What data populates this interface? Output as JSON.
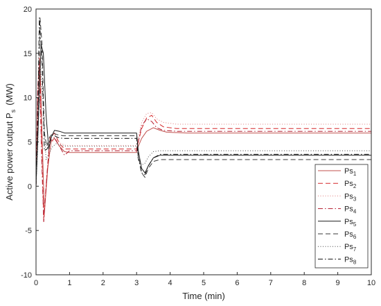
{
  "chart_data": {
    "type": "line",
    "xlabel": "Time (min)",
    "ylabel_main": "Active power output P",
    "ylabel_sub": "s",
    "ylabel_unit": "(MW)",
    "xlim": [
      0,
      10
    ],
    "ylim": [
      -10,
      20
    ],
    "xticks": [
      "0",
      "1",
      "2",
      "3",
      "4",
      "5",
      "6",
      "7",
      "8",
      "9",
      "10"
    ],
    "yticks": [
      "-10",
      "-5",
      "0",
      "5",
      "10",
      "15",
      "20"
    ],
    "grid": false,
    "legend_position": "right, lower-middle",
    "series": [
      {
        "name_main": "Ps",
        "name_sub": "1",
        "color": "#c0504d",
        "dash": "",
        "x": [
          0,
          0.05,
          0.12,
          0.18,
          0.25,
          0.35,
          0.45,
          0.55,
          0.7,
          0.85,
          1.0,
          1.5,
          2,
          2.5,
          3.0,
          3.05,
          3.15,
          3.3,
          3.5,
          3.7,
          3.9,
          4.5,
          6,
          8,
          10
        ],
        "y": [
          0,
          9,
          14,
          6,
          -3,
          2,
          5,
          5.4,
          4.5,
          3.9,
          3.8,
          3.8,
          3.8,
          3.8,
          3.8,
          4.5,
          5.4,
          6.2,
          6.6,
          6.3,
          6.1,
          6.0,
          6.0,
          6.0,
          6.0
        ]
      },
      {
        "name_main": "Ps",
        "name_sub": "2",
        "color": "#d62728",
        "dash": "7,4",
        "x": [
          0,
          0.05,
          0.1,
          0.17,
          0.23,
          0.32,
          0.42,
          0.55,
          0.7,
          0.85,
          1.0,
          1.5,
          2,
          2.5,
          3.0,
          3.05,
          3.15,
          3.3,
          3.45,
          3.6,
          3.8,
          4.2,
          6,
          8,
          10
        ],
        "y": [
          0,
          10,
          15,
          5,
          -4,
          1,
          5.5,
          6,
          4.8,
          4.2,
          4.2,
          4.2,
          4.2,
          4.2,
          4.2,
          5,
          6.5,
          7.7,
          8,
          7.2,
          6.7,
          6.5,
          6.5,
          6.5,
          6.5
        ]
      },
      {
        "name_main": "Ps",
        "name_sub": "3",
        "color": "#e07b7b",
        "dash": "1,2.5",
        "x": [
          0,
          0.05,
          0.1,
          0.17,
          0.25,
          0.35,
          0.45,
          0.6,
          0.75,
          0.9,
          1.0,
          1.5,
          2,
          2.5,
          3.0,
          3.05,
          3.15,
          3.3,
          3.45,
          3.6,
          3.8,
          4.2,
          6,
          8,
          10
        ],
        "y": [
          0,
          9,
          12,
          4,
          -2.5,
          2.5,
          5,
          5.3,
          4.8,
          4.6,
          4.6,
          4.6,
          4.6,
          4.6,
          4.6,
          5.5,
          7.2,
          8.2,
          8.3,
          7.6,
          7.2,
          7.0,
          7.0,
          7.0,
          7.0
        ]
      },
      {
        "name_main": "Ps",
        "name_sub": "4",
        "color": "#b2182b",
        "dash": "7,3,1.5,3",
        "x": [
          0,
          0.05,
          0.1,
          0.17,
          0.23,
          0.3,
          0.4,
          0.55,
          0.7,
          0.85,
          1.0,
          1.5,
          2,
          2.5,
          3.0,
          3.05,
          3.15,
          3.3,
          3.45,
          3.6,
          3.8,
          4.2,
          6,
          8,
          10
        ],
        "y": [
          0,
          11,
          14,
          3,
          -4,
          0,
          5,
          5.5,
          4.5,
          3.5,
          4.0,
          4.0,
          4.0,
          4.0,
          4.0,
          5,
          6.8,
          7.6,
          7.3,
          6.6,
          6.3,
          6.2,
          6.2,
          6.2,
          6.2
        ]
      },
      {
        "name_main": "Ps",
        "name_sub": "5",
        "color": "#1a1a1a",
        "dash": "",
        "x": [
          0,
          0.05,
          0.15,
          0.22,
          0.3,
          0.38,
          0.45,
          0.55,
          0.7,
          0.85,
          1.0,
          1.5,
          2,
          2.5,
          3.0,
          3.05,
          3.15,
          3.25,
          3.35,
          3.5,
          3.7,
          4.0,
          6,
          8,
          10
        ],
        "y": [
          0,
          5,
          16,
          15,
          8,
          4.2,
          5.5,
          6.3,
          6.2,
          6.0,
          6.0,
          6.0,
          6.0,
          6.0,
          6.0,
          4,
          2,
          1.5,
          2.3,
          3.2,
          3.5,
          3.5,
          3.5,
          3.5,
          3.5
        ]
      },
      {
        "name_main": "Ps",
        "name_sub": "6",
        "color": "#3a3a3a",
        "dash": "7,4",
        "x": [
          0,
          0.05,
          0.12,
          0.18,
          0.25,
          0.32,
          0.4,
          0.5,
          0.65,
          0.8,
          1.0,
          1.5,
          2,
          2.5,
          3.0,
          3.05,
          3.15,
          3.25,
          3.35,
          3.5,
          3.7,
          4.0,
          6,
          8,
          10
        ],
        "y": [
          0,
          6,
          19,
          16,
          6,
          4.5,
          5.5,
          6.0,
          5.8,
          5.7,
          5.7,
          5.7,
          5.7,
          5.7,
          5.7,
          3.5,
          1.5,
          1.0,
          2.0,
          2.8,
          3.0,
          3.0,
          3.0,
          3.0,
          3.0
        ]
      },
      {
        "name_main": "Ps",
        "name_sub": "7",
        "color": "#444444",
        "dash": "1,2.5",
        "x": [
          0,
          0.05,
          0.12,
          0.2,
          0.3,
          0.4,
          0.5,
          0.6,
          0.75,
          0.9,
          1.0,
          1.5,
          2,
          2.5,
          3.0,
          3.05,
          3.15,
          3.25,
          3.35,
          3.5,
          3.7,
          4.0,
          6,
          8,
          10
        ],
        "y": [
          0,
          4,
          14,
          10,
          3,
          3.8,
          4.5,
          4.8,
          4.6,
          4.5,
          4.5,
          4.5,
          4.5,
          4.5,
          4.5,
          3,
          2.4,
          2.6,
          3.3,
          3.9,
          4.0,
          4.0,
          4.0,
          4.0,
          4.0
        ]
      },
      {
        "name_main": "Ps",
        "name_sub": "8",
        "color": "#111111",
        "dash": "7,3,1.5,3",
        "x": [
          0,
          0.05,
          0.1,
          0.18,
          0.25,
          0.33,
          0.42,
          0.5,
          0.65,
          0.8,
          1.0,
          1.5,
          2,
          2.5,
          3.0,
          3.05,
          3.15,
          3.25,
          3.35,
          3.5,
          3.7,
          4.0,
          6,
          8,
          10
        ],
        "y": [
          0,
          7,
          19,
          14,
          4,
          4.2,
          5.2,
          5.8,
          5.5,
          5.4,
          5.4,
          5.4,
          5.4,
          5.4,
          5.4,
          3.2,
          1.5,
          1.3,
          2.3,
          3.2,
          3.6,
          3.6,
          3.6,
          3.6,
          3.6
        ]
      }
    ]
  }
}
